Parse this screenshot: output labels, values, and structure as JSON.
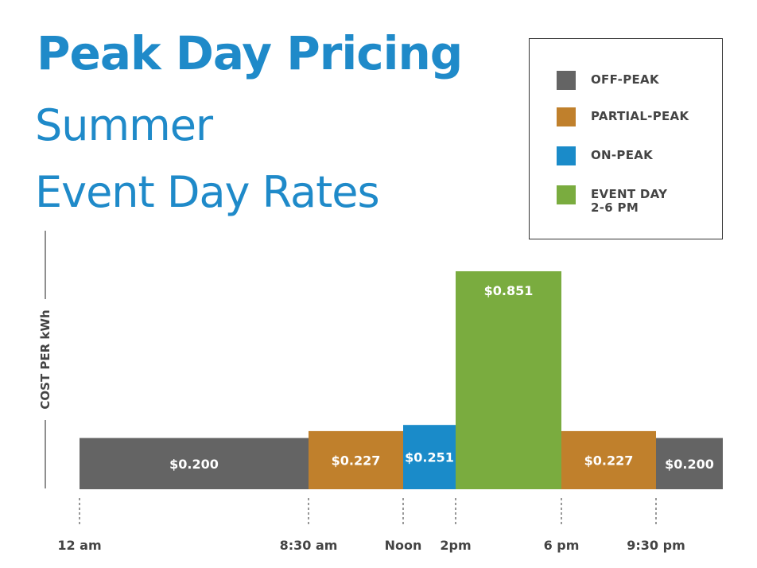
{
  "header": {
    "title": "Peak Day Pricing",
    "subtitle_line1": "Summer",
    "subtitle_line2": "Event Day Rates"
  },
  "legend": {
    "items": [
      {
        "label": "OFF-PEAK",
        "color": "#646464"
      },
      {
        "label": "PARTIAL-PEAK",
        "color": "#c0802c"
      },
      {
        "label": "ON-PEAK",
        "color": "#1a8bc9"
      },
      {
        "label": "EVENT DAY\n2-6 PM",
        "color": "#7aac3f"
      }
    ]
  },
  "chart_data": {
    "type": "bar",
    "ylabel": "COST PER kWh",
    "xlabel": "",
    "ylim": [
      0,
      0.9
    ],
    "grid": false,
    "legend_position": "top-right",
    "x_ticks": [
      {
        "label": "12 am",
        "hour": 0
      },
      {
        "label": "8:30 am",
        "hour": 8.5
      },
      {
        "label": "Noon",
        "hour": 12
      },
      {
        "label": "2pm",
        "hour": 14
      },
      {
        "label": "6 pm",
        "hour": 18
      },
      {
        "label": "9:30 pm",
        "hour": 21.5
      }
    ],
    "segments": [
      {
        "start_hour": 0,
        "end_hour": 8.5,
        "value": 0.2,
        "label": "$0.200",
        "tier": "OFF-PEAK",
        "color": "#646464"
      },
      {
        "start_hour": 8.5,
        "end_hour": 12,
        "value": 0.227,
        "label": "$0.227",
        "tier": "PARTIAL-PEAK",
        "color": "#c0802c"
      },
      {
        "start_hour": 12,
        "end_hour": 14,
        "value": 0.251,
        "label": "$0.251",
        "tier": "ON-PEAK",
        "color": "#1a8bc9"
      },
      {
        "start_hour": 14,
        "end_hour": 18,
        "value": 0.851,
        "label": "$0.851",
        "tier": "EVENT DAY 2-6 PM",
        "color": "#7aac3f"
      },
      {
        "start_hour": 18,
        "end_hour": 21.5,
        "value": 0.227,
        "label": "$0.227",
        "tier": "PARTIAL-PEAK",
        "color": "#c0802c"
      },
      {
        "start_hour": 21.5,
        "end_hour": 24,
        "value": 0.2,
        "label": "$0.200",
        "tier": "OFF-PEAK",
        "color": "#646464"
      }
    ]
  }
}
